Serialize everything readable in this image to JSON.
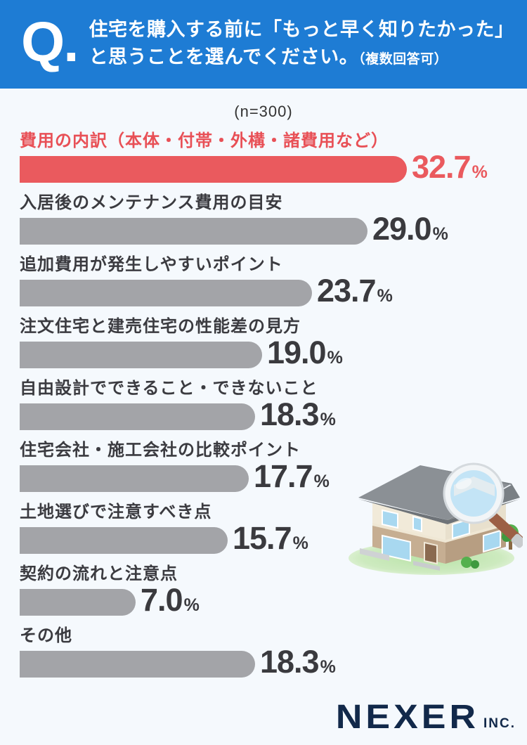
{
  "header": {
    "q_mark": "Q.",
    "title_line1": "住宅を購入する前に「もっと早く知りたかった」",
    "title_line2": "と思うことを選んでください。",
    "title_note": "（複数回答可）"
  },
  "sample_size_label": "(n=300)",
  "chart_data": {
    "type": "bar",
    "orientation": "horizontal",
    "title": "住宅を購入する前に「もっと早く知りたかった」と思うこと（複数回答可）",
    "n": 300,
    "unit": "%",
    "categories": [
      "費用の内訳（本体・付帯・外構・諸費用など）",
      "入居後のメンテナンス費用の目安",
      "追加費用が発生しやすいポイント",
      "注文住宅と建売住宅の性能差の見方",
      "自由設計でできること・できないこと",
      "住宅会社・施工会社の比較ポイント",
      "土地選びで注意すべき点",
      "契約の流れと注意点",
      "その他"
    ],
    "values": [
      32.7,
      29.0,
      23.7,
      19.0,
      18.3,
      17.7,
      15.7,
      7.0,
      18.3
    ],
    "highlight_index": 0,
    "xlim": [
      0,
      35
    ],
    "grid": false,
    "legend": false
  },
  "colors": {
    "header_bg": "#1e7cd4",
    "background": "#f5f9fd",
    "accent_red": "#ea5a5e",
    "bar_gray": "#a3a4a8",
    "text_dark": "#3a3a3e",
    "logo_navy": "#12294a"
  },
  "illustration": {
    "name": "house-with-magnifying-glass",
    "description": "Isometric two-story house inspected by a magnifying glass"
  },
  "footer": {
    "logo_text": "NEXER",
    "logo_suffix": "INC."
  }
}
